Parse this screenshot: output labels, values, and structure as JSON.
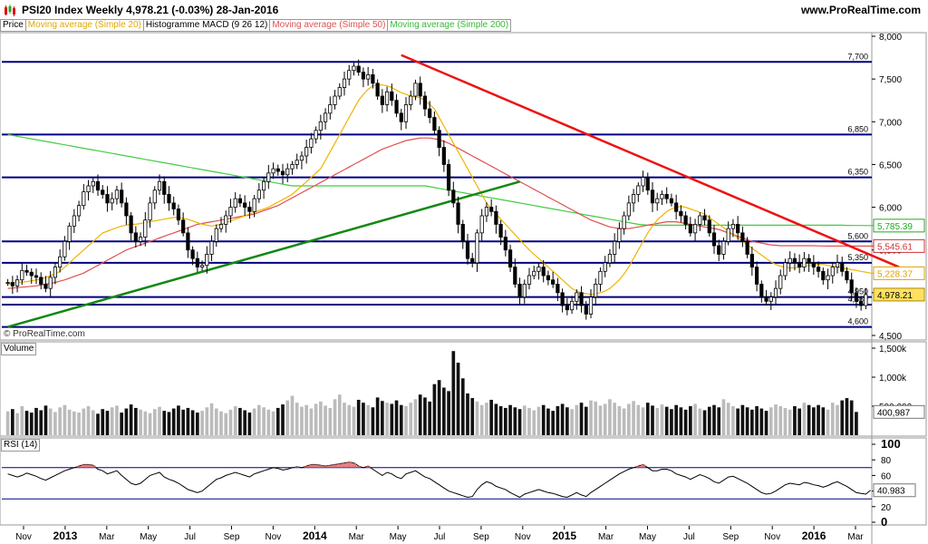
{
  "header": {
    "title": "PSI20 Index   Weekly   4,978.21 (-0.03%)   28-Jan-2016",
    "site": "www.ProRealTime.com"
  },
  "legend": [
    {
      "label": "Price",
      "color": "#000000"
    },
    {
      "label": "Moving average (Simple 20)",
      "color": "#f0b400"
    },
    {
      "label": "Histogramme MACD (9 26 12)",
      "color": "#000000"
    },
    {
      "label": "Moving average (Simple 50)",
      "color": "#e05050"
    },
    {
      "label": "Moving average (Simple 200)",
      "color": "#44cc44"
    }
  ],
  "copyright": "© ProRealTime.com",
  "panels": {
    "volume": "Volume",
    "rsi": "RSI (14)"
  },
  "chart_data": [
    {
      "type": "candlestick",
      "name": "price",
      "ylim": [
        4500,
        8000
      ],
      "y_ticks": [
        "4,500",
        "5,000",
        "5,500",
        "6,000",
        "6,500",
        "7,000",
        "7,500",
        "8,000"
      ],
      "x_ticks": [
        "Nov",
        "2013",
        "Mar",
        "May",
        "Jul",
        "Sep",
        "Nov",
        "2014",
        "Mar",
        "May",
        "Jul",
        "Sep",
        "Nov",
        "2015",
        "Mar",
        "May",
        "Jul",
        "Sep",
        "Nov",
        "2016",
        "Mar"
      ],
      "x_ticks_bold": [
        "2013",
        "2014",
        "2015",
        "2016"
      ],
      "levels": [
        {
          "label": "7,700",
          "value": 7700,
          "color": "#000080"
        },
        {
          "label": "6,850",
          "value": 6850,
          "color": "#000080"
        },
        {
          "label": "6,350",
          "value": 6350,
          "color": "#000080"
        },
        {
          "label": "5,600",
          "value": 5600,
          "color": "#000080"
        },
        {
          "label": "5,350",
          "value": 5350,
          "color": "#000080"
        },
        {
          "label": "4,950",
          "value": 4950,
          "color": "#000080"
        },
        {
          "label": "4,860",
          "value": 4860,
          "color": "#000080"
        },
        {
          "label": "4,600",
          "value": 4600,
          "color": "#000080"
        }
      ],
      "value_tags": [
        {
          "label": "5,785.39",
          "value": 5785,
          "color": "#22aa22",
          "bg": "#ffffff"
        },
        {
          "label": "5,545.61",
          "value": 5546,
          "color": "#cc3333",
          "bg": "#ffffff"
        },
        {
          "label": "5,228.37",
          "value": 5228,
          "color": "#e0a000",
          "bg": "#ffffff"
        },
        {
          "label": "4,978.21",
          "value": 4978,
          "color": "#000000",
          "bg": "#ffe060"
        }
      ],
      "trendlines": [
        {
          "name": "support",
          "color": "#118811",
          "from": [
            0,
            4600
          ],
          "to": [
            108,
            6300
          ]
        },
        {
          "name": "resistance",
          "color": "#ee1111",
          "from": [
            83,
            7780
          ],
          "to": [
            188,
            5300
          ]
        }
      ],
      "closes": [
        5120,
        5080,
        5150,
        5260,
        5240,
        5200,
        5180,
        5100,
        5050,
        5180,
        5300,
        5420,
        5600,
        5780,
        5900,
        6020,
        6180,
        6250,
        6300,
        6200,
        6150,
        6050,
        6100,
        6200,
        6050,
        5900,
        5700,
        5600,
        5650,
        5850,
        6050,
        6200,
        6300,
        6150,
        6050,
        5980,
        5850,
        5700,
        5500,
        5400,
        5300,
        5320,
        5450,
        5600,
        5750,
        5800,
        5900,
        6000,
        6100,
        6050,
        6000,
        5950,
        6100,
        6200,
        6300,
        6400,
        6450,
        6420,
        6380,
        6450,
        6500,
        6550,
        6600,
        6700,
        6800,
        6900,
        7000,
        7100,
        7200,
        7300,
        7400,
        7500,
        7600,
        7650,
        7580,
        7500,
        7550,
        7450,
        7300,
        7200,
        7350,
        7250,
        7100,
        7000,
        7200,
        7300,
        7450,
        7300,
        7150,
        7050,
        6900,
        6700,
        6500,
        6200,
        6050,
        5800,
        5600,
        5400,
        5350,
        5700,
        5900,
        6000,
        5950,
        5800,
        5650,
        5500,
        5300,
        5100,
        4950,
        5100,
        5200,
        5250,
        5300,
        5200,
        5150,
        5100,
        5000,
        4850,
        4800,
        4900,
        5000,
        4850,
        4750,
        4950,
        5100,
        5250,
        5350,
        5450,
        5600,
        5750,
        5900,
        6050,
        6150,
        6250,
        6350,
        6200,
        6050,
        6100,
        6150,
        6100,
        6050,
        5950,
        5900,
        5800,
        5700,
        5800,
        5900,
        5850,
        5700,
        5550,
        5450,
        5600,
        5750,
        5800,
        5700,
        5600,
        5450,
        5300,
        5100,
        4950,
        4900,
        4950,
        5050,
        5200,
        5350,
        5400,
        5350,
        5300,
        5400,
        5350,
        5300,
        5250,
        5150,
        5200,
        5300,
        5350,
        5250,
        5150,
        5000,
        4900,
        4850,
        4978
      ],
      "ma20": [
        5100,
        5110,
        5120,
        5125,
        5130,
        5140,
        5150,
        5160,
        5180,
        5200,
        5220,
        5250,
        5300,
        5350,
        5400,
        5450,
        5500,
        5550,
        5600,
        5650,
        5700,
        5720,
        5740,
        5760,
        5780,
        5790,
        5800,
        5800,
        5810,
        5820,
        5830,
        5840,
        5850,
        5860,
        5870,
        5880,
        5880,
        5870,
        5860,
        5840,
        5820,
        5800,
        5790,
        5780,
        5790,
        5800,
        5820,
        5840,
        5860,
        5880,
        5900,
        5920,
        5940,
        5960,
        5980,
        6000,
        6030,
        6060,
        6090,
        6120,
        6150,
        6200,
        6250,
        6300,
        6350,
        6400,
        6450,
        6550,
        6650,
        6750,
        6850,
        6950,
        7050,
        7150,
        7250,
        7320,
        7380,
        7420,
        7430,
        7430,
        7420,
        7400,
        7370,
        7340,
        7320,
        7300,
        7290,
        7280,
        7250,
        7200,
        7150,
        7050,
        6950,
        6850,
        6750,
        6650,
        6550,
        6450,
        6350,
        6250,
        6150,
        6050,
        5980,
        5920,
        5860,
        5800,
        5740,
        5680,
        5620,
        5560,
        5500,
        5450,
        5400,
        5350,
        5300,
        5250,
        5200,
        5150,
        5100,
        5050,
        5020,
        5000,
        4990,
        4980,
        4990,
        5000,
        5020,
        5050,
        5100,
        5150,
        5220,
        5300,
        5400,
        5500,
        5600,
        5700,
        5780,
        5850,
        5900,
        5950,
        5980,
        6000,
        6010,
        6000,
        5980,
        5960,
        5940,
        5920,
        5880,
        5840,
        5800,
        5760,
        5720,
        5680,
        5640,
        5600,
        5560,
        5520,
        5480,
        5440,
        5400,
        5360,
        5330,
        5310,
        5300,
        5290,
        5290,
        5300,
        5310,
        5320,
        5330,
        5330,
        5330,
        5320,
        5310,
        5300,
        5290,
        5280,
        5270,
        5260,
        5250,
        5240,
        5230,
        5228
      ],
      "ma50": [
        5050,
        5055,
        5060,
        5065,
        5070,
        5075,
        5080,
        5090,
        5100,
        5110,
        5120,
        5135,
        5150,
        5170,
        5190,
        5210,
        5230,
        5260,
        5290,
        5320,
        5350,
        5380,
        5410,
        5440,
        5470,
        5500,
        5520,
        5540,
        5560,
        5580,
        5600,
        5620,
        5640,
        5660,
        5680,
        5700,
        5720,
        5740,
        5760,
        5780,
        5800,
        5810,
        5820,
        5830,
        5840,
        5850,
        5860,
        5870,
        5880,
        5890,
        5900,
        5910,
        5920,
        5940,
        5960,
        5980,
        6000,
        6020,
        6050,
        6080,
        6110,
        6140,
        6170,
        6200,
        6230,
        6260,
        6290,
        6320,
        6350,
        6380,
        6410,
        6440,
        6470,
        6500,
        6530,
        6560,
        6590,
        6620,
        6650,
        6680,
        6700,
        6720,
        6740,
        6760,
        6780,
        6790,
        6800,
        6810,
        6810,
        6810,
        6800,
        6790,
        6770,
        6750,
        6720,
        6690,
        6660,
        6630,
        6600,
        6570,
        6540,
        6510,
        6480,
        6450,
        6420,
        6390,
        6360,
        6330,
        6300,
        6270,
        6240,
        6210,
        6180,
        6150,
        6120,
        6090,
        6060,
        6030,
        6000,
        5970,
        5940,
        5910,
        5880,
        5850,
        5830,
        5810,
        5790,
        5770,
        5760,
        5750,
        5750,
        5750,
        5760,
        5770,
        5780,
        5790,
        5800,
        5810,
        5820,
        5830,
        5830,
        5830,
        5820,
        5810,
        5800,
        5790,
        5780,
        5770,
        5760,
        5750,
        5740,
        5720,
        5700,
        5680,
        5660,
        5640,
        5620,
        5600,
        5590,
        5580,
        5570,
        5560,
        5555,
        5550,
        5550,
        5550,
        5550,
        5550,
        5550,
        5550,
        5550,
        5548,
        5547,
        5546,
        5546,
        5546,
        5546,
        5546,
        5546,
        5546,
        5546,
        5546,
        5546,
        5546
      ],
      "ma200": [
        6850,
        6840,
        6830,
        6820,
        6810,
        6800,
        6790,
        6780,
        6770,
        6760,
        6750,
        6740,
        6730,
        6720,
        6710,
        6700,
        6690,
        6680,
        6670,
        6660,
        6650,
        6640,
        6630,
        6620,
        6610,
        6600,
        6590,
        6580,
        6570,
        6560,
        6550,
        6540,
        6530,
        6520,
        6510,
        6500,
        6490,
        6480,
        6470,
        6460,
        6450,
        6440,
        6430,
        6420,
        6410,
        6400,
        6390,
        6380,
        6370,
        6360,
        6350,
        6340,
        6330,
        6320,
        6310,
        6300,
        6290,
        6280,
        6270,
        6260,
        6250,
        6250,
        6250,
        6250,
        6250,
        6250,
        6250,
        6250,
        6250,
        6250,
        6250,
        6250,
        6250,
        6250,
        6250,
        6250,
        6250,
        6250,
        6250,
        6250,
        6250,
        6250,
        6250,
        6250,
        6250,
        6250,
        6250,
        6250,
        6250,
        6240,
        6230,
        6220,
        6210,
        6200,
        6190,
        6180,
        6170,
        6160,
        6150,
        6140,
        6130,
        6120,
        6110,
        6100,
        6090,
        6080,
        6070,
        6060,
        6050,
        6040,
        6030,
        6020,
        6010,
        6000,
        5990,
        5980,
        5970,
        5960,
        5950,
        5940,
        5930,
        5920,
        5910,
        5900,
        5890,
        5880,
        5870,
        5860,
        5850,
        5840,
        5830,
        5820,
        5810,
        5800,
        5795,
        5790,
        5790,
        5790,
        5790,
        5790,
        5790,
        5790,
        5790,
        5790,
        5790,
        5790,
        5790,
        5790,
        5790,
        5790,
        5790,
        5790,
        5790,
        5790,
        5790,
        5790,
        5790,
        5790,
        5790,
        5790,
        5790,
        5790,
        5790,
        5790,
        5790,
        5790,
        5790,
        5790,
        5790,
        5790,
        5790,
        5790,
        5790,
        5790,
        5790,
        5790,
        5790,
        5788,
        5787,
        5786,
        5786,
        5785,
        5785,
        5785,
        5785
      ]
    },
    {
      "type": "bar",
      "name": "volume",
      "ylim": [
        0,
        1500000
      ],
      "y_ticks": [
        "1,500k",
        "1,000k",
        "500,000"
      ],
      "last_value_label": "400,987",
      "values": [
        410000,
        450000,
        380000,
        500000,
        420000,
        390000,
        470000,
        430000,
        510000,
        460000,
        400000,
        480000,
        520000,
        440000,
        410000,
        390000,
        460000,
        500000,
        430000,
        370000,
        450000,
        420000,
        480000,
        510000,
        390000,
        460000,
        530000,
        470000,
        440000,
        410000,
        380000,
        450000,
        490000,
        420000,
        400000,
        460000,
        510000,
        440000,
        470000,
        430000,
        390000,
        420000,
        480000,
        550000,
        460000,
        410000,
        380000,
        440000,
        500000,
        470000,
        430000,
        390000,
        460000,
        520000,
        480000,
        440000,
        410000,
        470000,
        530000,
        600000,
        680000,
        560000,
        490000,
        520000,
        460000,
        540000,
        580000,
        510000,
        470000,
        620000,
        700000,
        560000,
        520000,
        490000,
        610000,
        560000,
        520000,
        480000,
        650000,
        590000,
        560000,
        540000,
        600000,
        520000,
        500000,
        560000,
        620000,
        700000,
        650000,
        580000,
        880000,
        950000,
        820000,
        760000,
        1450000,
        1250000,
        980000,
        720000,
        640000,
        580000,
        520000,
        560000,
        610000,
        540000,
        500000,
        470000,
        520000,
        480000,
        450000,
        510000,
        470000,
        430000,
        490000,
        520000,
        460000,
        420000,
        500000,
        540000,
        480000,
        450000,
        520000,
        560000,
        490000,
        600000,
        580000,
        510000,
        540000,
        620000,
        560000,
        500000,
        460000,
        540000,
        590000,
        520000,
        480000,
        560000,
        510000,
        470000,
        530000,
        490000,
        450000,
        520000,
        480000,
        440000,
        500000,
        540000,
        460000,
        430000,
        490000,
        520000,
        480000,
        620000,
        560000,
        500000,
        460000,
        520000,
        480000,
        440000,
        500000,
        460000,
        420000,
        480000,
        530000,
        500000,
        470000,
        440000,
        500000,
        460000,
        560000,
        520000,
        480000,
        520000,
        480000,
        440000,
        560000,
        520000,
        600000,
        640000,
        600000,
        401000
      ]
    },
    {
      "type": "line",
      "name": "rsi",
      "ylim": [
        0,
        100
      ],
      "y_ticks": [
        "100",
        "80",
        "60",
        "40",
        "20",
        "0"
      ],
      "levels": [
        70,
        30
      ],
      "last_value_label": "40.983",
      "values": [
        62,
        60,
        58,
        60,
        63,
        61,
        59,
        56,
        54,
        57,
        60,
        63,
        66,
        68,
        70,
        72,
        74,
        74,
        73,
        68,
        66,
        62,
        64,
        66,
        60,
        55,
        50,
        48,
        50,
        55,
        60,
        62,
        64,
        58,
        55,
        53,
        50,
        46,
        42,
        40,
        38,
        40,
        45,
        50,
        55,
        57,
        60,
        62,
        64,
        62,
        60,
        58,
        62,
        64,
        66,
        68,
        70,
        69,
        67,
        68,
        70,
        71,
        70,
        72,
        74,
        74,
        73,
        72,
        73,
        74,
        75,
        76,
        77,
        76,
        72,
        70,
        72,
        68,
        64,
        60,
        64,
        62,
        58,
        56,
        62,
        64,
        66,
        62,
        58,
        56,
        52,
        48,
        44,
        40,
        38,
        36,
        34,
        32,
        33,
        42,
        48,
        52,
        50,
        46,
        44,
        42,
        38,
        35,
        32,
        36,
        38,
        40,
        42,
        40,
        38,
        37,
        35,
        33,
        32,
        35,
        38,
        35,
        33,
        38,
        42,
        46,
        50,
        54,
        58,
        62,
        65,
        68,
        70,
        72,
        74,
        70,
        66,
        66,
        68,
        68,
        66,
        62,
        60,
        58,
        55,
        58,
        61,
        59,
        56,
        52,
        50,
        54,
        58,
        59,
        56,
        53,
        50,
        46,
        42,
        38,
        36,
        37,
        40,
        44,
        48,
        50,
        49,
        48,
        51,
        50,
        48,
        47,
        45,
        47,
        50,
        52,
        49,
        46,
        42,
        38,
        37,
        36,
        41
      ]
    }
  ]
}
